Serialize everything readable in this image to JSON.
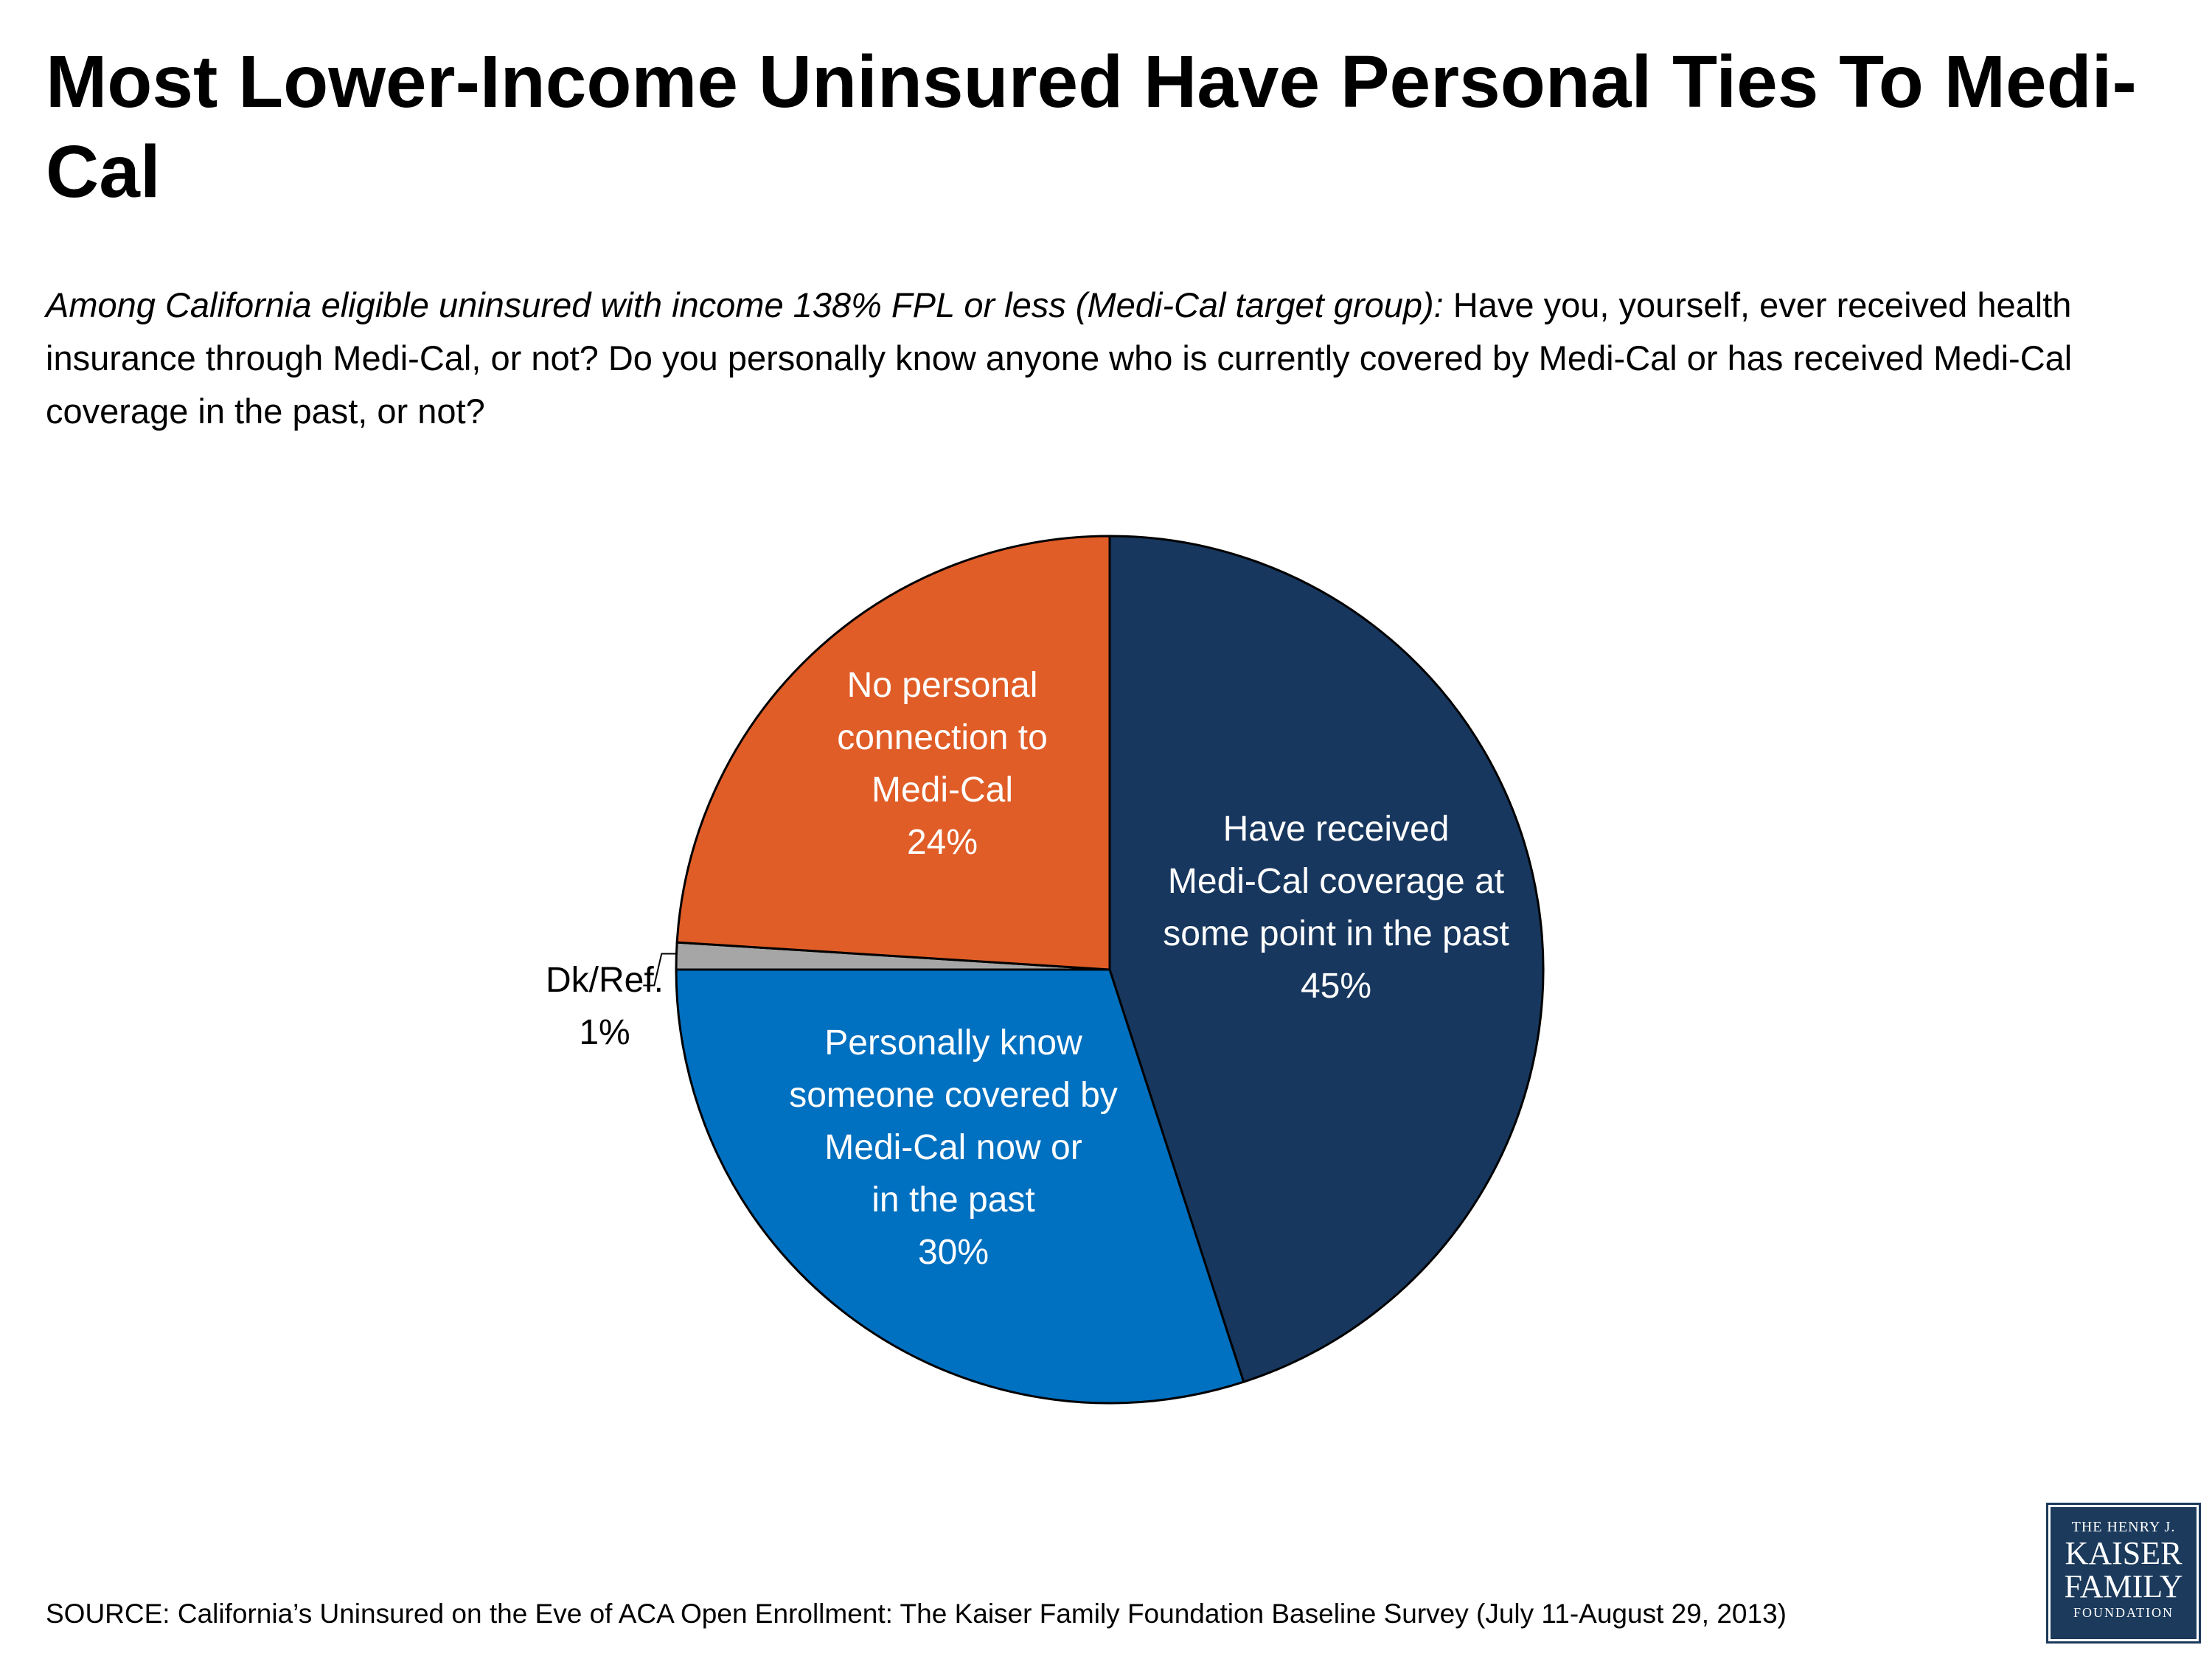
{
  "title": "Most Lower-Income Uninsured Have Personal Ties To Medi-Cal",
  "subtitle": {
    "italic_part": "Among California eligible uninsured with income 138% FPL or less (Medi-Cal target group):",
    "regular_part": " Have you, yourself, ever received health insurance through Medi-Cal, or not? Do you personally know anyone who is currently covered by Medi-Cal or has received Medi-Cal coverage in the past, or not?"
  },
  "chart_data": {
    "type": "pie",
    "title": "Most Lower-Income Uninsured Have Personal Ties To Medi-Cal",
    "start": "12 o'clock",
    "direction": "clockwise",
    "slices": [
      {
        "label_lines": [
          "Have received",
          "Medi-Cal coverage at",
          "some point in the past"
        ],
        "value": 45,
        "value_label": "45%",
        "color": "#17375e",
        "text_color": "#ffffff"
      },
      {
        "label_lines": [
          "Personally know",
          "someone covered by",
          "Medi-Cal now or",
          "in the past"
        ],
        "value": 30,
        "value_label": "30%",
        "color": "#0070c0",
        "text_color": "#ffffff"
      },
      {
        "label_lines": [
          "Dk/Ref."
        ],
        "value": 1,
        "value_label": "1%",
        "color": "#a6a6a6",
        "text_color": "#000000"
      },
      {
        "label_lines": [
          "No personal",
          "connection to",
          "Medi-Cal"
        ],
        "value": 24,
        "value_label": "24%",
        "color": "#e05d27",
        "text_color": "#ffffff"
      }
    ]
  },
  "source": "SOURCE: California’s Uninsured on the Eve of ACA Open Enrollment: The Kaiser Family Foundation Baseline Survey (July 11-August 29, 2013)",
  "logo": {
    "line1": "THE HENRY J.",
    "line2": "KAISER",
    "line3": "FAMILY",
    "line4": "FOUNDATION"
  }
}
